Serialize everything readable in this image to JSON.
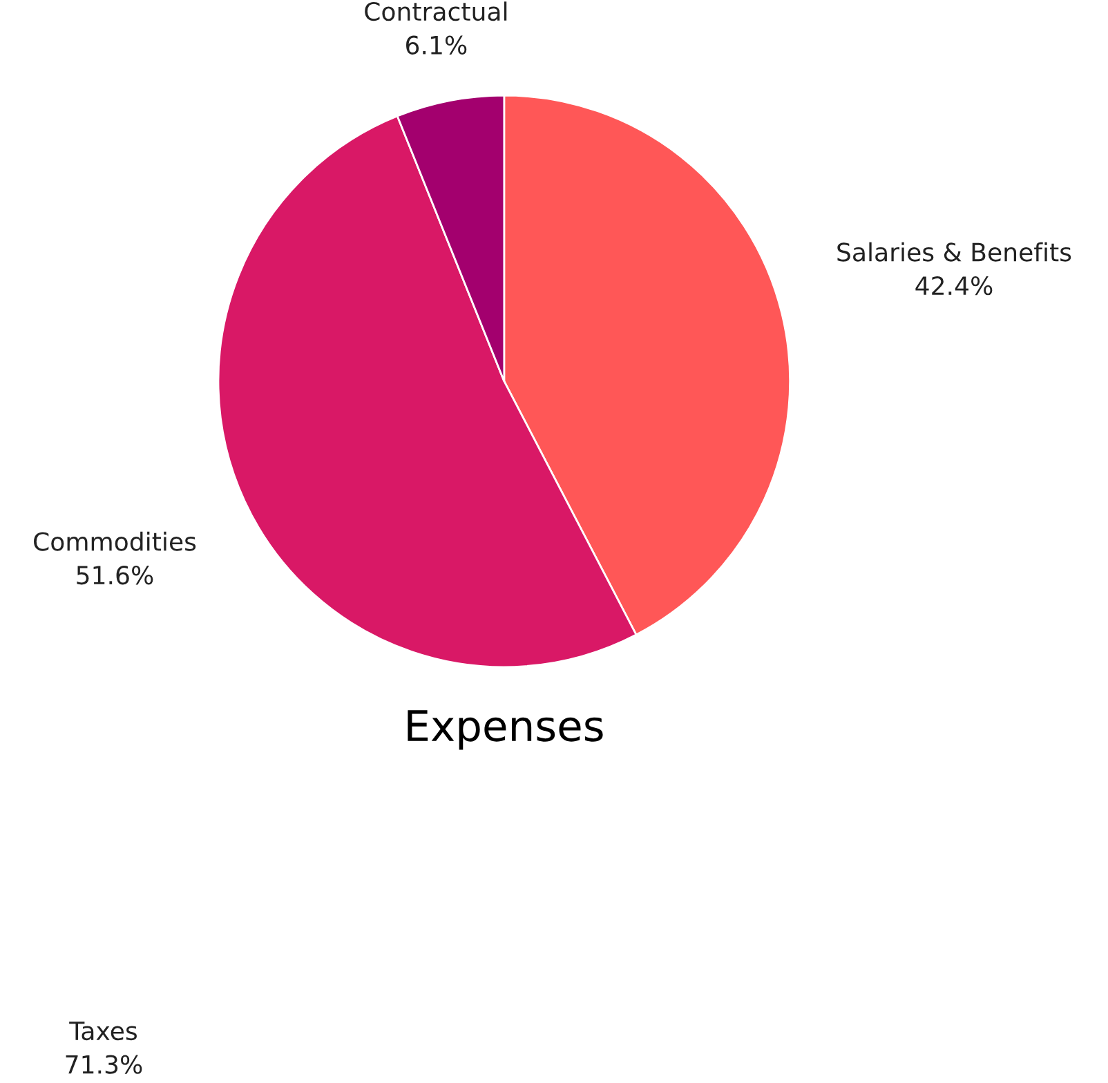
{
  "chart_data": {
    "type": "pie",
    "title": "Expenses",
    "categories": [
      "Salaries & Benefits",
      "Commodities",
      "Contractual"
    ],
    "values": [
      42.4,
      51.6,
      6.1
    ],
    "colors": [
      "#ff5757",
      "#d91866",
      "#a3006e"
    ],
    "value_labels": [
      "42.4%",
      "51.6%",
      "6.1%"
    ],
    "annotations": [
      "Taxes\n71.3%"
    ]
  }
}
